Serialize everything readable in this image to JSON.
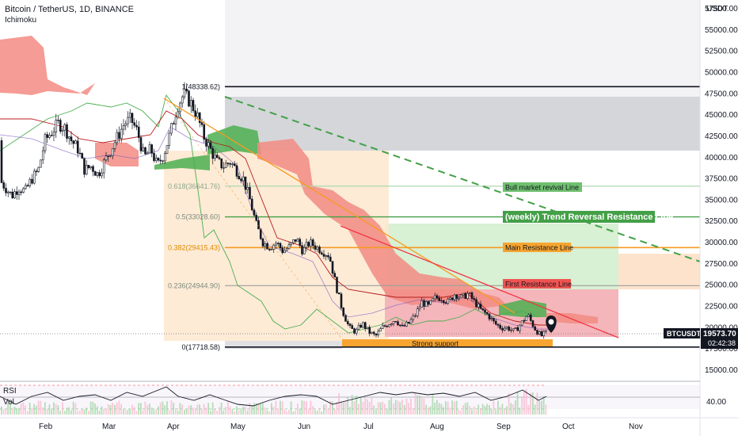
{
  "header": {
    "title": "Bitcoin / TetherUS, 1D, BINANCE",
    "indicator": "Ichimoku",
    "currency": "USDT"
  },
  "chart_data": {
    "type": "candlestick",
    "y_ticks": [
      "57500.00",
      "55000.00",
      "52500.00",
      "50000.00",
      "47500.00",
      "45000.00",
      "42500.00",
      "40000.00",
      "37500.00",
      "35000.00",
      "32500.00",
      "30000.00",
      "27500.00",
      "25000.00",
      "22500.00",
      "20000.00",
      "17500.00",
      "15000.00"
    ],
    "y_tick_values": [
      57500,
      55000,
      52500,
      50000,
      47500,
      45000,
      42500,
      40000,
      37500,
      35000,
      32500,
      30000,
      27500,
      25000,
      22500,
      20000,
      17500,
      15000
    ],
    "ylim": [
      13500,
      59500
    ],
    "x_labels": [
      "Feb",
      "Mar",
      "Apr",
      "May",
      "Jun",
      "Jul",
      "Aug",
      "Sep",
      "Oct",
      "Nov"
    ],
    "fib_levels": [
      {
        "label": "1(48338.62)",
        "value": 48338.62
      },
      {
        "label": "0.618(36641.76)",
        "value": 36641.76
      },
      {
        "label": "0.5(33028.60)",
        "value": 33028.6
      },
      {
        "label": "0.382(29415.43)",
        "value": 29415.43
      },
      {
        "label": "0.236(24944.90)",
        "value": 24944.9
      },
      {
        "label": "0(17718.58)",
        "value": 17718.58
      }
    ],
    "annotations": [
      "Bull market revival Line",
      "(weekly) Trend Reversal Resistance Line",
      "Main Resistance Line",
      "First Resistance Line",
      "Strong support"
    ],
    "current_price": {
      "symbol": "BTCUSDT",
      "price": "19573.70",
      "countdown": "02:42:38"
    },
    "rsi": {
      "label": "RSI",
      "level": "40.00"
    },
    "volume": {
      "label": "Vol"
    },
    "price_path": [
      [
        0,
        42000
      ],
      [
        0.1,
        40500
      ],
      [
        0.2,
        39000
      ],
      [
        0.3,
        37500
      ],
      [
        0.4,
        36500
      ],
      [
        0.5,
        35500
      ],
      [
        0.6,
        36500
      ],
      [
        0.7,
        36000
      ],
      [
        0.8,
        37500
      ],
      [
        0.9,
        38500
      ],
      [
        1.0,
        42000
      ],
      [
        1.1,
        43000
      ],
      [
        1.2,
        44000
      ],
      [
        1.3,
        43500
      ],
      [
        1.4,
        42000
      ],
      [
        1.5,
        41000
      ],
      [
        1.6,
        38500
      ],
      [
        1.7,
        39000
      ],
      [
        1.8,
        38000
      ],
      [
        1.9,
        39500
      ],
      [
        2.0,
        41000
      ],
      [
        2.1,
        42500
      ],
      [
        2.2,
        44000
      ],
      [
        2.3,
        44500
      ],
      [
        2.4,
        43000
      ],
      [
        2.5,
        40000
      ],
      [
        2.6,
        41000
      ],
      [
        2.7,
        39000
      ],
      [
        2.8,
        40500
      ],
      [
        2.9,
        43000
      ],
      [
        3.0,
        46000
      ],
      [
        3.1,
        47500
      ],
      [
        3.2,
        46500
      ],
      [
        3.3,
        45000
      ],
      [
        3.4,
        42500
      ],
      [
        3.5,
        41000
      ],
      [
        3.6,
        39500
      ],
      [
        3.7,
        39000
      ],
      [
        3.8,
        39500
      ],
      [
        3.9,
        38500
      ],
      [
        4.0,
        37500
      ],
      [
        4.1,
        35000
      ],
      [
        4.2,
        32000
      ],
      [
        4.3,
        30000
      ],
      [
        4.4,
        29500
      ],
      [
        4.5,
        30000
      ],
      [
        4.6,
        29000
      ],
      [
        4.7,
        29500
      ],
      [
        4.8,
        30500
      ],
      [
        4.9,
        29000
      ],
      [
        5.0,
        30000
      ],
      [
        5.1,
        29500
      ],
      [
        5.2,
        29000
      ],
      [
        5.3,
        28500
      ],
      [
        5.4,
        25000
      ],
      [
        5.5,
        22000
      ],
      [
        5.6,
        20000
      ],
      [
        5.7,
        19500
      ],
      [
        5.8,
        20500
      ],
      [
        5.9,
        19500
      ],
      [
        6.0,
        19000
      ],
      [
        6.1,
        20000
      ],
      [
        6.2,
        20500
      ],
      [
        6.3,
        21000
      ],
      [
        6.4,
        20000
      ],
      [
        6.5,
        20500
      ],
      [
        6.6,
        21500
      ],
      [
        6.7,
        23000
      ],
      [
        6.8,
        22500
      ],
      [
        6.9,
        23500
      ],
      [
        7.0,
        23500
      ],
      [
        7.1,
        23000
      ],
      [
        7.2,
        24000
      ],
      [
        7.3,
        23500
      ],
      [
        7.4,
        24000
      ],
      [
        7.5,
        23000
      ],
      [
        7.6,
        22000
      ],
      [
        7.7,
        21500
      ],
      [
        7.8,
        20500
      ],
      [
        7.9,
        20000
      ],
      [
        8.0,
        20000
      ],
      [
        8.1,
        19500
      ],
      [
        8.2,
        20500
      ],
      [
        8.3,
        21500
      ],
      [
        8.4,
        20000
      ],
      [
        8.5,
        19000
      ],
      [
        8.6,
        19500
      ]
    ]
  }
}
